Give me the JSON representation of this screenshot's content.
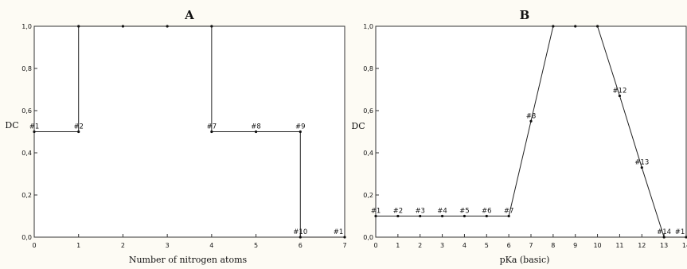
{
  "chart_data": [
    {
      "type": "line",
      "step": true,
      "title": "A",
      "xlabel": "Number of nitrogen atoms",
      "ylabel": "DC",
      "xlim": [
        0,
        7
      ],
      "ylim": [
        0,
        1
      ],
      "xticks": [
        "0",
        "1",
        "2",
        "3",
        "4",
        "5",
        "6",
        "7"
      ],
      "yticks": [
        "0,0",
        "0,2",
        "0,4",
        "0,6",
        "0,8",
        "1,0"
      ],
      "series": [
        {
          "points": [
            {
              "x": 0,
              "y": 0.5
            },
            {
              "x": 1,
              "y": 0.5
            },
            {
              "x": 1,
              "y": 1.0
            },
            {
              "x": 2,
              "y": 1.0
            },
            {
              "x": 3,
              "y": 1.0
            },
            {
              "x": 4,
              "y": 1.0
            },
            {
              "x": 4,
              "y": 0.5
            },
            {
              "x": 5,
              "y": 0.5
            },
            {
              "x": 6,
              "y": 0.5
            },
            {
              "x": 6,
              "y": 0.0
            },
            {
              "x": 7,
              "y": 0.0
            }
          ]
        }
      ],
      "labels": [
        {
          "x": 0,
          "y": 0.5,
          "text": "#1"
        },
        {
          "x": 1,
          "y": 0.5,
          "text": "#2"
        },
        {
          "x": 4,
          "y": 0.5,
          "text": "#7"
        },
        {
          "x": 5,
          "y": 0.5,
          "text": "#8"
        },
        {
          "x": 6,
          "y": 0.5,
          "text": "#9"
        },
        {
          "x": 6,
          "y": 0.0,
          "text": "#10"
        },
        {
          "x": 7,
          "y": 0.0,
          "text": "#1"
        }
      ]
    },
    {
      "type": "line",
      "title": "B",
      "xlabel": "pKa (basic)",
      "ylabel": "DC",
      "xlim": [
        0,
        14
      ],
      "ylim": [
        0,
        1
      ],
      "xticks": [
        "0",
        "1",
        "2",
        "3",
        "4",
        "5",
        "6",
        "7",
        "8",
        "9",
        "10",
        "11",
        "12",
        "13",
        "14"
      ],
      "yticks": [
        "0,0",
        "0,2",
        "0,4",
        "0,6",
        "0,8",
        "1,0"
      ],
      "series": [
        {
          "points": [
            {
              "x": 0,
              "y": 0.1
            },
            {
              "x": 1,
              "y": 0.1
            },
            {
              "x": 2,
              "y": 0.1
            },
            {
              "x": 3,
              "y": 0.1
            },
            {
              "x": 4,
              "y": 0.1
            },
            {
              "x": 5,
              "y": 0.1
            },
            {
              "x": 6,
              "y": 0.1
            },
            {
              "x": 7,
              "y": 0.55
            },
            {
              "x": 8,
              "y": 1.0
            },
            {
              "x": 9,
              "y": 1.0
            },
            {
              "x": 10,
              "y": 1.0
            },
            {
              "x": 11,
              "y": 0.67
            },
            {
              "x": 12,
              "y": 0.33
            },
            {
              "x": 13,
              "y": 0.0
            },
            {
              "x": 14,
              "y": 0.0
            }
          ]
        }
      ],
      "labels": [
        {
          "x": 0,
          "y": 0.1,
          "text": "#1"
        },
        {
          "x": 1,
          "y": 0.1,
          "text": "#2"
        },
        {
          "x": 2,
          "y": 0.1,
          "text": "#3"
        },
        {
          "x": 3,
          "y": 0.1,
          "text": "#4"
        },
        {
          "x": 4,
          "y": 0.1,
          "text": "#5"
        },
        {
          "x": 5,
          "y": 0.1,
          "text": "#6"
        },
        {
          "x": 6,
          "y": 0.1,
          "text": "#7"
        },
        {
          "x": 7,
          "y": 0.55,
          "text": "#8"
        },
        {
          "x": 11,
          "y": 0.67,
          "text": "#12"
        },
        {
          "x": 12,
          "y": 0.33,
          "text": "#13"
        },
        {
          "x": 13,
          "y": 0.0,
          "text": "#14"
        },
        {
          "x": 14,
          "y": 0.0,
          "text": "#1"
        }
      ]
    }
  ]
}
